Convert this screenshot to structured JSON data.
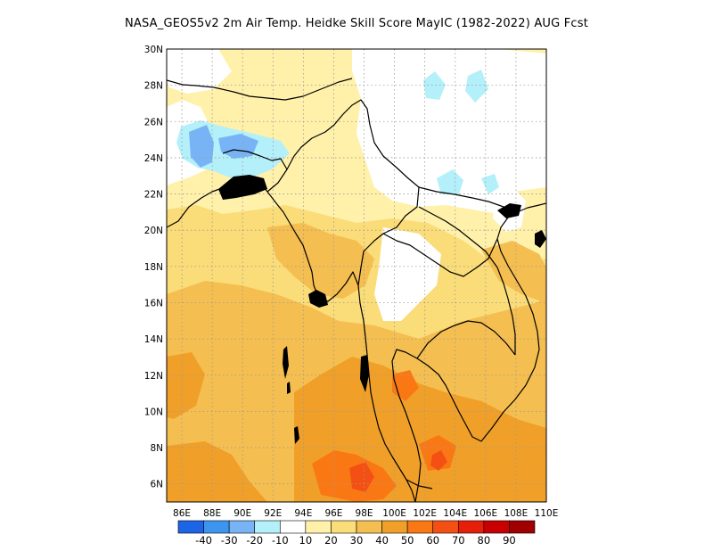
{
  "title": "NASA_GEOS5v2 2m Air Temp. Heidke Skill Score MayIC (1982-2022) AUG Fcst",
  "map": {
    "lon_labels": [
      "86E",
      "88E",
      "90E",
      "92E",
      "94E",
      "96E",
      "98E",
      "100E",
      "102E",
      "104E",
      "106E",
      "108E",
      "110E"
    ],
    "lat_labels": [
      "6N",
      "8N",
      "10N",
      "12N",
      "14N",
      "16N",
      "18N",
      "20N",
      "22N",
      "24N",
      "26N",
      "28N",
      "30N"
    ],
    "lon_range": [
      85,
      110
    ],
    "lat_range": [
      5,
      30
    ],
    "grid": "dotted"
  },
  "colorbar": {
    "colors": [
      "#1e64e6",
      "#3c96f0",
      "#78b4f5",
      "#b4f0fa",
      "#ffffff",
      "#fff0aa",
      "#fadc78",
      "#f5be50",
      "#f0a028",
      "#fa7814",
      "#f55014",
      "#e61e0a",
      "#c80000",
      "#a00000"
    ],
    "labels": [
      "-40",
      "-30",
      "-20",
      "-10",
      "10",
      "20",
      "30",
      "40",
      "50",
      "60",
      "70",
      "80",
      "90"
    ]
  }
}
